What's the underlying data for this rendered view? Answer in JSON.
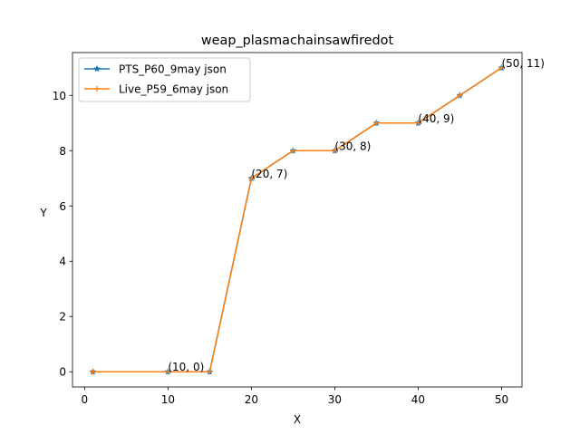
{
  "chart_data": {
    "type": "line",
    "title": "weap_plasmachainsawfiredot",
    "xlabel": "X",
    "ylabel": "Y",
    "xlim": [
      -1.45,
      52.45
    ],
    "ylim": [
      -0.55,
      11.55
    ],
    "xticks": [
      0,
      10,
      20,
      30,
      40,
      50
    ],
    "yticks": [
      0,
      2,
      4,
      6,
      8,
      10
    ],
    "grid": false,
    "legend_position": "upper-left",
    "series": [
      {
        "name": "PTS_P60_9may json",
        "color": "#1f77b4",
        "marker": "star",
        "x": [
          1,
          10,
          15,
          20,
          25,
          30,
          35,
          40,
          45,
          50
        ],
        "y": [
          0,
          0,
          0,
          7,
          8,
          8,
          9,
          9,
          10,
          11
        ]
      },
      {
        "name": "Live_P59_6may json",
        "color": "#ff7f0e",
        "marker": "plus",
        "x": [
          1,
          10,
          15,
          20,
          25,
          30,
          35,
          40,
          45,
          50
        ],
        "y": [
          0,
          0,
          0,
          7,
          8,
          8,
          9,
          9,
          10,
          11
        ]
      }
    ],
    "annotations": [
      {
        "text": "(10, 0)",
        "x": 10,
        "y": 0
      },
      {
        "text": "(20, 7)",
        "x": 20,
        "y": 7
      },
      {
        "text": "(30, 8)",
        "x": 30,
        "y": 8
      },
      {
        "text": "(40, 9)",
        "x": 40,
        "y": 9
      },
      {
        "text": "(50, 11)",
        "x": 50,
        "y": 11
      }
    ]
  }
}
